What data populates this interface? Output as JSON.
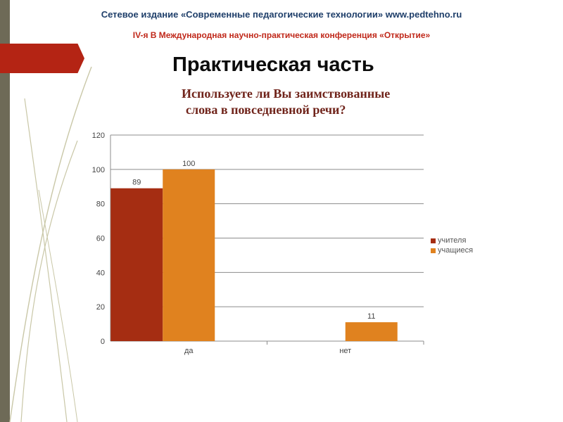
{
  "header": {
    "publisher": "Сетевое издание «Современные педагогические технологии» www.pedtehno.ru",
    "conference": "IV-я В Международная научно-практическая конференция «Открытие»"
  },
  "slide": {
    "title": "Практическая часть",
    "question_line1": "Используете ли Вы заимствованные",
    "question_line2": "слова в повседневной речи?"
  },
  "colors": {
    "accent_red": "#b42414",
    "series_teachers": "#a52d12",
    "series_students": "#e0821f",
    "decor_olive": "#6e6a57"
  },
  "chart_data": {
    "type": "bar",
    "categories": [
      "да",
      "нет"
    ],
    "series": [
      {
        "name": "учителя",
        "values": [
          89,
          null
        ],
        "labels": [
          "89",
          ""
        ]
      },
      {
        "name": "учащиеся",
        "values": [
          100,
          11
        ],
        "labels": [
          "100",
          "11"
        ]
      }
    ],
    "ylim": [
      0,
      120
    ],
    "yticks": [
      0,
      20,
      40,
      60,
      80,
      100,
      120
    ],
    "ytick_labels": [
      "0",
      "20",
      "40",
      "60",
      "80",
      "100",
      "120"
    ],
    "grid": true,
    "legend_position": "right"
  }
}
